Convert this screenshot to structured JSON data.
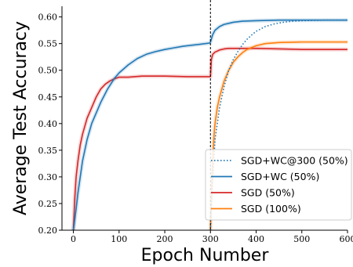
{
  "chart_data": {
    "type": "line",
    "title": "",
    "xlabel": "Epoch Number",
    "ylabel": "Average Test Accuracy",
    "xlim": [
      -25,
      600
    ],
    "ylim": [
      0.2,
      0.62
    ],
    "xticks": [
      0,
      100,
      200,
      300,
      400,
      500,
      600
    ],
    "xtick_labels": [
      "0",
      "100",
      "200",
      "300",
      "400",
      "500",
      "600"
    ],
    "yticks": [
      0.2,
      0.25,
      0.3,
      0.35,
      0.4,
      0.45,
      0.5,
      0.55,
      0.6
    ],
    "ytick_labels": [
      "0.20",
      "0.25",
      "0.30",
      "0.35",
      "0.40",
      "0.45",
      "0.50",
      "0.55",
      "0.60"
    ],
    "vline": {
      "x": 300,
      "style": "dashed",
      "color": "#000000"
    },
    "grid": false,
    "legend_position": "lower-right",
    "series": [
      {
        "name": "SGD+WC@300 (50%)",
        "color": "#1f77b4",
        "style": "dotted",
        "x": [
          300,
          305,
          310,
          320,
          330,
          340,
          350,
          360,
          370,
          380,
          390,
          400,
          420,
          440,
          460,
          480,
          500,
          550,
          600
        ],
        "y": [
          0.2,
          0.3,
          0.37,
          0.43,
          0.47,
          0.5,
          0.52,
          0.535,
          0.548,
          0.558,
          0.566,
          0.573,
          0.582,
          0.587,
          0.59,
          0.592,
          0.593,
          0.594,
          0.594
        ]
      },
      {
        "name": "SGD+WC (50%)",
        "color": "#1f77b4",
        "style": "solid",
        "x": [
          0,
          3,
          6,
          10,
          15,
          20,
          30,
          40,
          50,
          60,
          75,
          90,
          100,
          120,
          140,
          160,
          180,
          200,
          220,
          240,
          260,
          280,
          298,
          300,
          305,
          310,
          320,
          330,
          340,
          350,
          370,
          400,
          450,
          500,
          550,
          600
        ],
        "y": [
          0.2,
          0.22,
          0.24,
          0.27,
          0.3,
          0.33,
          0.37,
          0.4,
          0.42,
          0.44,
          0.465,
          0.485,
          0.495,
          0.51,
          0.522,
          0.53,
          0.535,
          0.539,
          0.542,
          0.545,
          0.547,
          0.549,
          0.551,
          0.553,
          0.567,
          0.575,
          0.582,
          0.586,
          0.588,
          0.59,
          0.592,
          0.593,
          0.594,
          0.594,
          0.594,
          0.594
        ]
      },
      {
        "name": "SGD (50%)",
        "color": "#d62728",
        "style": "solid",
        "x": [
          0,
          3,
          6,
          10,
          15,
          20,
          25,
          30,
          40,
          50,
          60,
          70,
          80,
          90,
          100,
          120,
          150,
          200,
          250,
          298,
          300,
          302,
          305,
          310,
          320,
          330,
          340,
          350,
          400,
          450,
          500,
          550,
          600
        ],
        "y": [
          0.2,
          0.26,
          0.3,
          0.33,
          0.36,
          0.38,
          0.395,
          0.41,
          0.43,
          0.45,
          0.465,
          0.474,
          0.48,
          0.484,
          0.487,
          0.487,
          0.489,
          0.489,
          0.488,
          0.488,
          0.488,
          0.52,
          0.53,
          0.534,
          0.538,
          0.54,
          0.541,
          0.541,
          0.541,
          0.54,
          0.539,
          0.539,
          0.539
        ]
      },
      {
        "name": "SGD (100%)",
        "color": "#ff7f0e",
        "style": "solid",
        "x": [
          300,
          302,
          304,
          306,
          308,
          310,
          315,
          320,
          330,
          340,
          350,
          360,
          370,
          380,
          400,
          420,
          450,
          500,
          550,
          600
        ],
        "y": [
          0.2,
          0.26,
          0.31,
          0.35,
          0.38,
          0.4,
          0.43,
          0.45,
          0.48,
          0.5,
          0.515,
          0.525,
          0.533,
          0.539,
          0.546,
          0.55,
          0.552,
          0.553,
          0.553,
          0.553
        ]
      }
    ]
  }
}
